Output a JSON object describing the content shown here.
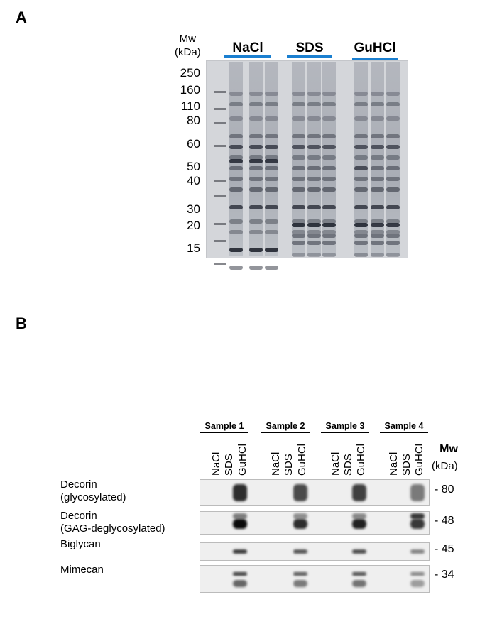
{
  "panel_a": {
    "label": "A",
    "mw_title": "Mw",
    "mw_unit": "(kDa)",
    "groups": [
      "NaCl",
      "SDS",
      "GuHCl"
    ],
    "group_underline_color": "#1a7fd0",
    "markers": [
      "250",
      "160",
      "110",
      "80",
      "60",
      "50",
      "40",
      "30",
      "20",
      "15"
    ]
  },
  "panel_b": {
    "label": "B",
    "samples": [
      "Sample 1",
      "Sample 2",
      "Sample 3",
      "Sample 4"
    ],
    "lanes": [
      "NaCl",
      "SDS",
      "GuHCl"
    ],
    "mw_title": "Mw",
    "mw_unit": "(kDa)",
    "rows": [
      {
        "name_line1": "Decorin",
        "name_line2": "(glycosylated)",
        "mw": "- 80"
      },
      {
        "name_line1": "Decorin",
        "name_line2": "(GAG-deglycosylated)",
        "mw": "- 48"
      },
      {
        "name_line1": "Biglycan",
        "name_line2": "",
        "mw": "- 45"
      },
      {
        "name_line1": "Mimecan",
        "name_line2": "",
        "mw": "- 34"
      }
    ]
  }
}
